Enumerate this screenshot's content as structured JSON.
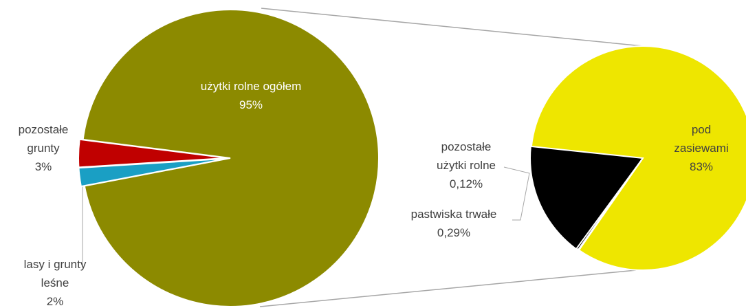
{
  "chart_data": [
    {
      "type": "pie",
      "categories": [
        "użytki rolne ogółem",
        "pozostałe grunty",
        "lasy i grunty leśne"
      ],
      "values": [
        95,
        3,
        2
      ],
      "value_labels": [
        "95%",
        "3%",
        "2%"
      ],
      "colors": [
        "#8c8a00",
        "#c00000",
        "#1a9fc4"
      ]
    },
    {
      "type": "pie",
      "categories": [
        "pod zasiewami",
        "pozostałe użytki rolne",
        "pastwiska trwałe"
      ],
      "values": [
        83,
        0.12,
        0.29
      ],
      "value_labels": [
        "83%",
        "0,12%",
        "0,29%"
      ],
      "colors": [
        "#eee600",
        "#000000",
        "#000000"
      ]
    }
  ]
}
